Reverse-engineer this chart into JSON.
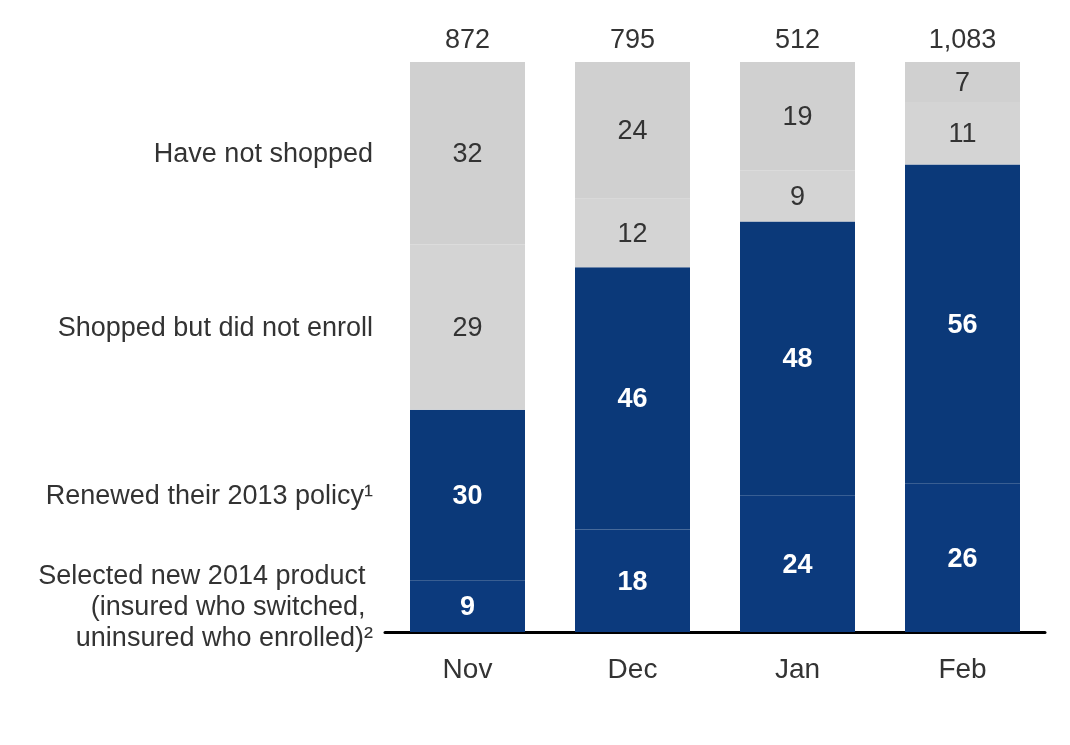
{
  "chart_data": {
    "type": "bar",
    "stacked": true,
    "data_labels": true,
    "grid": false,
    "legend": false,
    "tick_labels": "x",
    "categories": [
      "Nov",
      "Dec",
      "Jan",
      "Feb"
    ],
    "series": [
      {
        "name": "Selected new 2014 product (insured who switched, uninsured who enrolled)²",
        "color": "#0c3a7d",
        "values": [
          9,
          18,
          24,
          26
        ]
      },
      {
        "name": "Renewed their 2013 policy¹",
        "color": "#0b3979",
        "values": [
          30,
          46,
          48,
          56
        ]
      },
      {
        "name": "Shopped but did not enroll",
        "color": "#d4d4d4",
        "values": [
          29,
          12,
          9,
          11
        ]
      },
      {
        "name": "Have not shopped",
        "color": "#d0d0d0",
        "values": [
          32,
          24,
          19,
          7
        ]
      }
    ],
    "annotations": [
      "872",
      "795",
      "512",
      "1,083"
    ]
  }
}
